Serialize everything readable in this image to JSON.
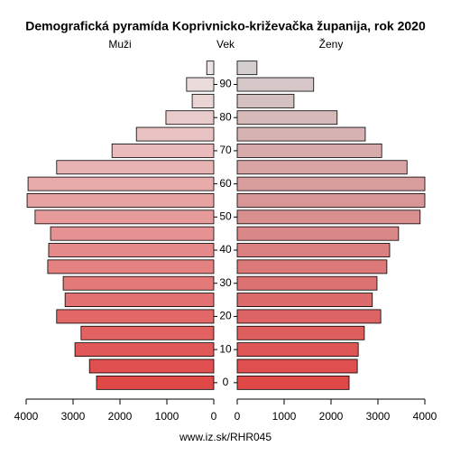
{
  "chart_data": {
    "type": "pyramid",
    "title": "Demografická pyramída Koprivnicko-križevačka županija, rok 2020",
    "y_label": "Vek",
    "footer": "www.iz.sk/RHR045",
    "categories": [
      null,
      null,
      null,
      null,
      null,
      null,
      null,
      null,
      null,
      null,
      null,
      null,
      null,
      null,
      null,
      null,
      null,
      null,
      null,
      null
    ],
    "series": [
      {
        "name": "Muži",
        "side": "left",
        "color_bottom": "#e04848",
        "color_top": "#ece4e4",
        "values": [
          2500,
          2650,
          2960,
          2830,
          3350,
          3170,
          3210,
          3540,
          3520,
          3480,
          3810,
          3980,
          3960,
          3350,
          2170,
          1650,
          1020,
          460,
          580,
          150
        ]
      },
      {
        "name": "Ženy",
        "side": "right",
        "color_bottom": "#e04848",
        "color_top": "#d4cece",
        "values": [
          2385,
          2560,
          2580,
          2710,
          3060,
          2880,
          2980,
          3190,
          3250,
          3440,
          3900,
          4000,
          4000,
          3620,
          3080,
          2730,
          2130,
          1210,
          1630,
          420
        ]
      }
    ],
    "xlim": [
      0,
      4000
    ],
    "xticks": [
      0,
      1000,
      2000,
      3000,
      4000
    ],
    "ylim": [
      -2.5,
      97.5
    ],
    "yticks": [
      0,
      10,
      20,
      30,
      40,
      50,
      60,
      70,
      80,
      90
    ]
  }
}
